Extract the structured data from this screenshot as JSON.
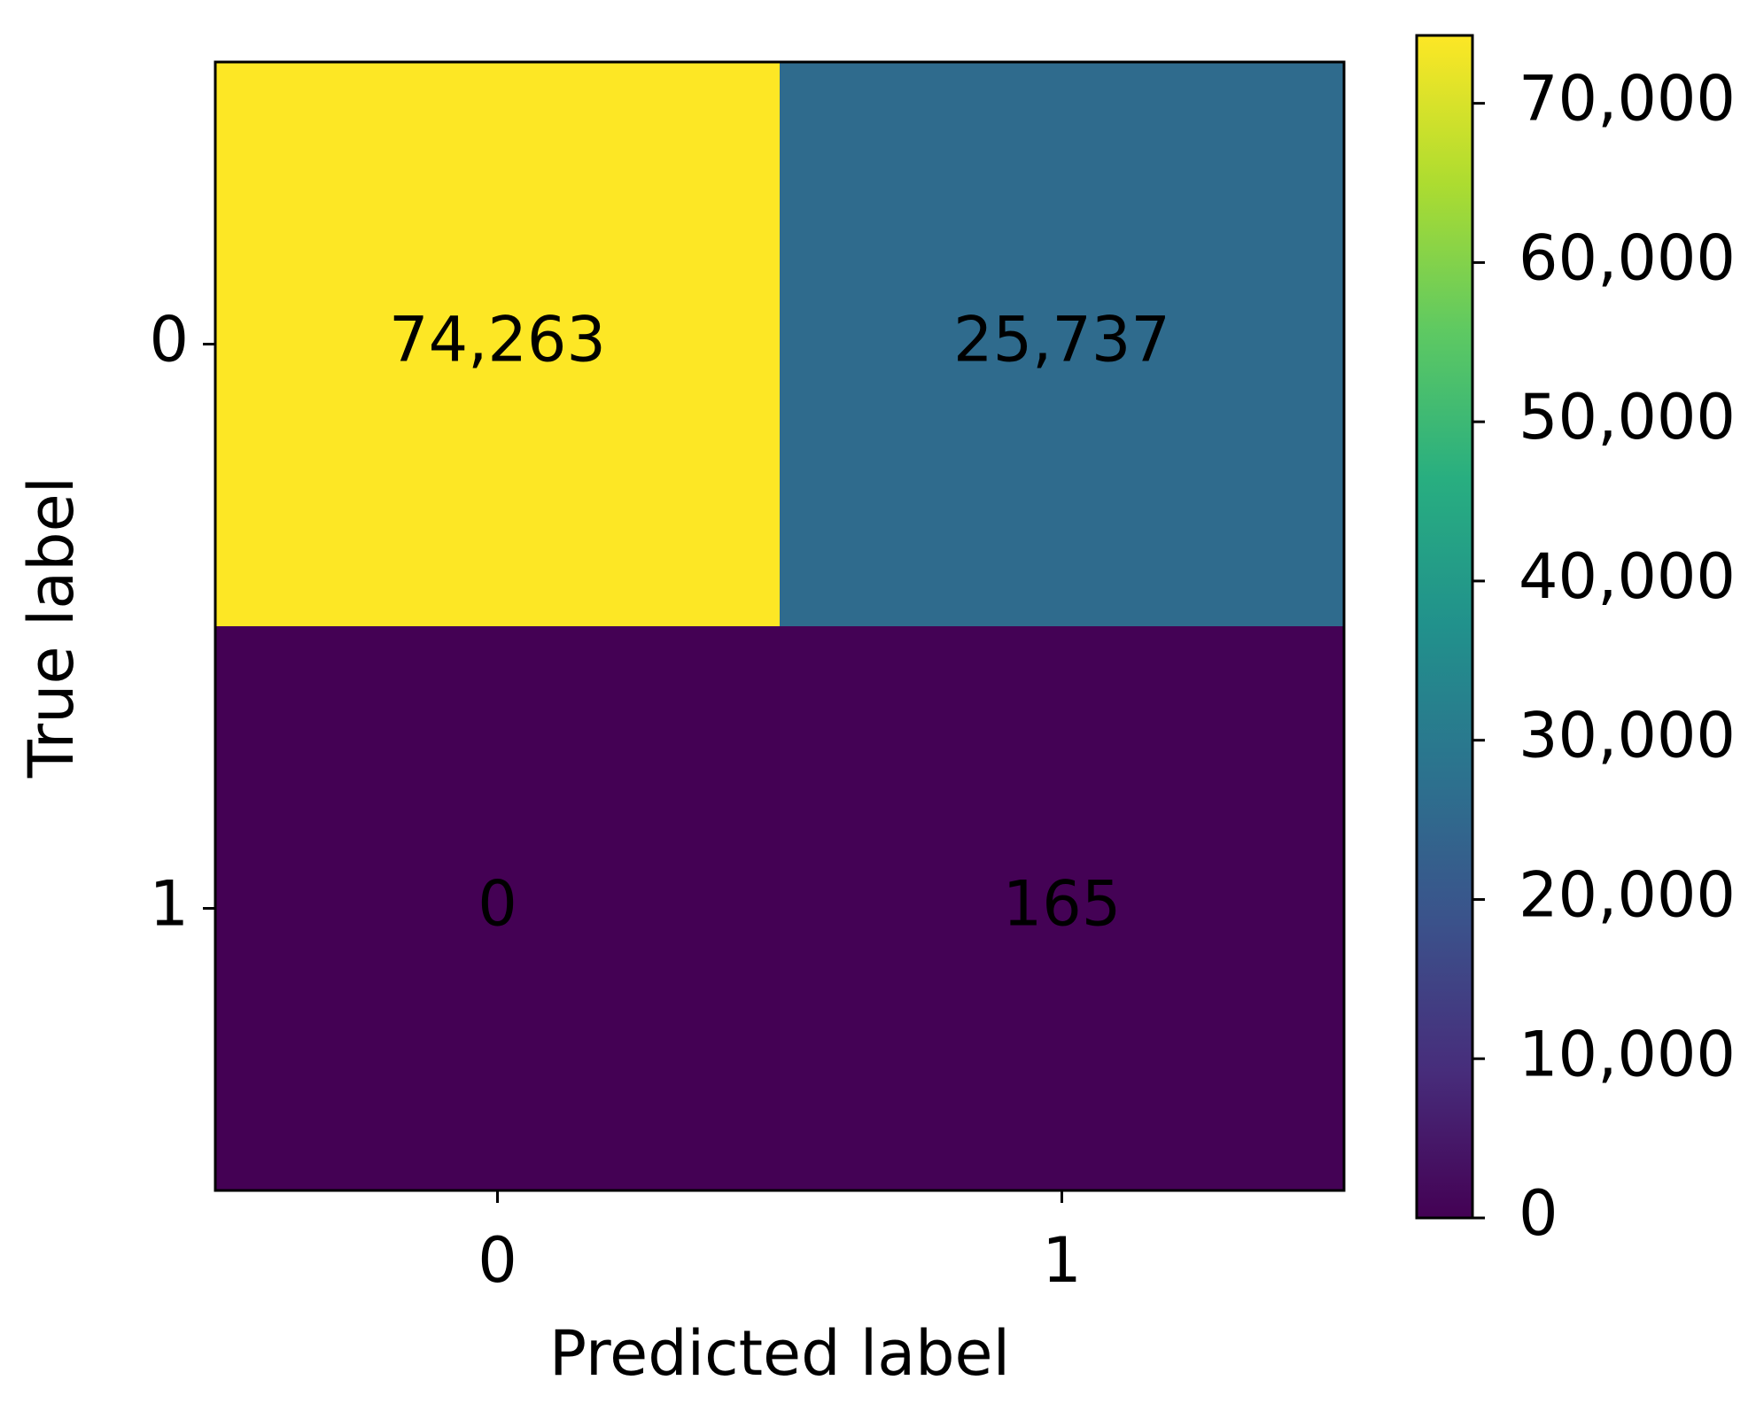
{
  "chart_data": {
    "type": "heatmap",
    "x_label": "Predicted label",
    "y_label": "True label",
    "x_categories": [
      "0",
      "1"
    ],
    "y_categories": [
      "0",
      "1"
    ],
    "values": [
      [
        74263,
        25737
      ],
      [
        0,
        165
      ]
    ],
    "value_labels": [
      [
        "74,263",
        "25,737"
      ],
      [
        "0",
        "165"
      ]
    ],
    "colormap": "viridis",
    "colorbar": {
      "lim": [
        0,
        74263
      ],
      "ticks": [
        0,
        {
          "value": 10000,
          "label": "10,000"
        },
        {
          "value": 20000,
          "label": "20,000"
        },
        {
          "value": 30000,
          "label": "30,000"
        },
        {
          "value": 40000,
          "label": "40,000"
        },
        {
          "value": 50000,
          "label": "50,000"
        },
        {
          "value": 60000,
          "label": "60,000"
        },
        {
          "value": 70000,
          "label": "70,000"
        }
      ]
    }
  }
}
